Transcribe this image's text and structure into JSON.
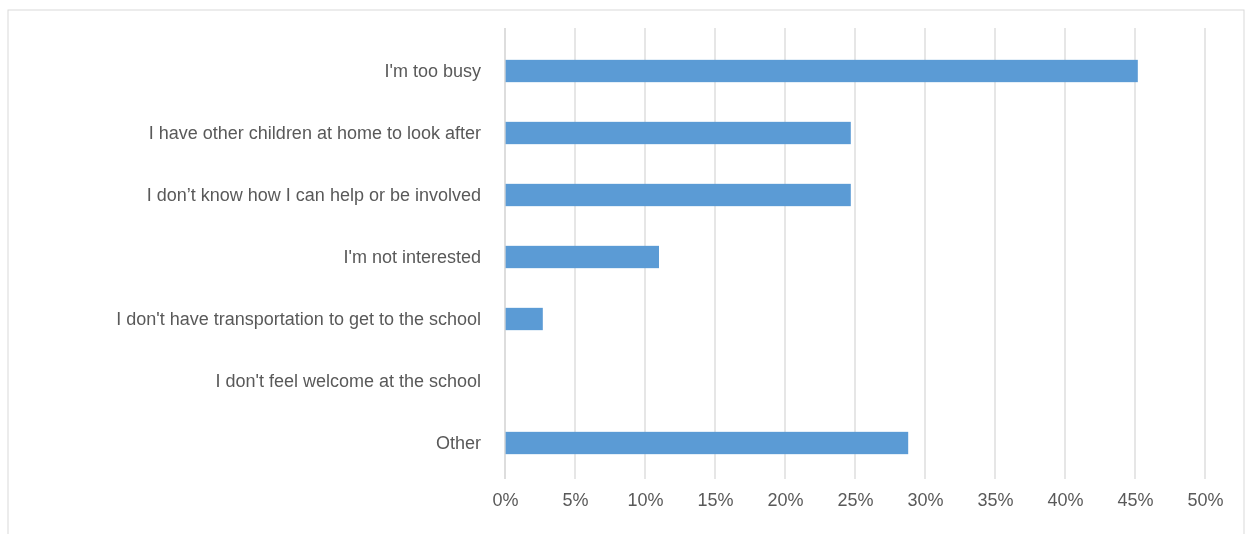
{
  "chart_data": {
    "type": "bar",
    "orientation": "horizontal",
    "categories": [
      "I'm too busy",
      "I have other children at home to look after",
      "I don’t know how I can help or be involved",
      "I'm not interested",
      "I don't have transportation to get to the school",
      "I don't feel welcome at the school",
      "Other"
    ],
    "values": [
      45.2,
      24.7,
      24.7,
      11.0,
      2.7,
      0,
      28.8
    ],
    "color": "#5b9bd5",
    "xlim": [
      0,
      50
    ],
    "xticks": [
      {
        "value": 0,
        "label": "0%"
      },
      {
        "value": 5,
        "label": "5%"
      },
      {
        "value": 10,
        "label": "10%"
      },
      {
        "value": 15,
        "label": "15%"
      },
      {
        "value": 20,
        "label": "20%"
      },
      {
        "value": 25,
        "label": "25%"
      },
      {
        "value": 30,
        "label": "30%"
      },
      {
        "value": 35,
        "label": "35%"
      },
      {
        "value": 40,
        "label": "40%"
      },
      {
        "value": 45,
        "label": "45%"
      },
      {
        "value": 50,
        "label": "50%"
      }
    ],
    "grid": "x"
  }
}
